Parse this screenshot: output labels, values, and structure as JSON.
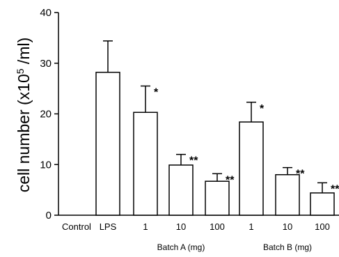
{
  "chart_data": {
    "type": "bar",
    "title": "",
    "xlabel": "",
    "ylabel": "cell number (x10",
    "ylabel_sup": "5",
    "ylabel_unit": " /ml)",
    "ylim": [
      0,
      40
    ],
    "yticks": [
      "0",
      "10",
      "20",
      "30",
      "40"
    ],
    "categories": [
      "Control",
      "LPS",
      "1",
      "10",
      "100",
      "1",
      "10",
      "100"
    ],
    "values": [
      0,
      28.2,
      20.3,
      9.9,
      6.7,
      18.4,
      8.0,
      4.4
    ],
    "errors": [
      0,
      6.2,
      5.2,
      2.1,
      1.5,
      3.9,
      1.4,
      2.0
    ],
    "significance": [
      "",
      "",
      "*",
      "**",
      "**",
      "*",
      "**",
      "**"
    ],
    "groups": [
      {
        "label": "Batch A (mg)",
        "categories": [
          "1",
          "10",
          "100"
        ]
      },
      {
        "label": "Batch B (mg)",
        "categories": [
          "1",
          "10",
          "100"
        ]
      }
    ],
    "grid": false
  },
  "style": {
    "bar_fill": "#ffffff",
    "stroke": "#000000"
  }
}
